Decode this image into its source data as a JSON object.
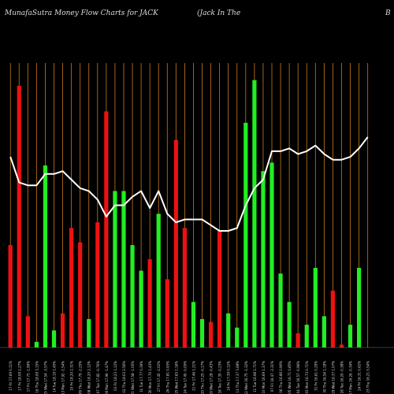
{
  "header": {
    "left": "MunafaSutra  Money Flow  Charts for JACK",
    "middle": "(Jack In  The",
    "right": "B"
  },
  "colors": {
    "background": "#000000",
    "up": "#22ee22",
    "down": "#ee1111",
    "line": "#ffffff",
    "grid": "#c87a1e",
    "text": "#dddddd"
  },
  "chart_data": {
    "type": "bar",
    "title": "MunafaSutra  Money Flow  Charts for JACK",
    "grid": "vertical",
    "ylim": [
      0,
      100
    ],
    "categories": [
      "17 Fri 17.69 0.11%",
      "17 Fri 18.09 2.27%",
      "17 Fri 17.73 -1.99%",
      "16 Thu 18.09 3.15%",
      "15 Wed 17.54 -3.57%",
      "14 Tue 18.19 1.45%",
      "13 Mon 17.92 -1.54%",
      "10 Fri 18.20 2.31%",
      "09 Thu 17.79 -2.25%",
      "08 Wed 18.20 2.12%",
      "07 Tue 17.82 -0.76%",
      "06 Mon 17.96 -1.47%",
      "03 Fri 18.23 1.12%",
      "02 Thu 18.03 2.56%",
      "01 Wed 17.58 -1.05%",
      "31 Tue 17.77 0.39%",
      "30 Mon 17.70 1.43%",
      "27 Fri 17.45 -2.02%",
      "26 Thu 17.81 0.93%",
      "25 Wed 17.65 1.16%",
      "24 Tue 17.45 -0.05%",
      "21 Fri 17.46 1.21%",
      "20 Thu 17.25 -0.17%",
      "19 Wed 17.28 -0.43%",
      "18 Tue 17.35 -0.23%",
      "14 Fri 17.39 0.12%",
      "13 Thu 17.37 3.68%",
      "12 Wed 16.75 -1.32%",
      "11 Tue 16.98 1.71%",
      "10 Mon 16.69 1.37%",
      "07 Fri 16.47 -2.31%",
      "06 Thu 16.86 0.90%",
      "05 Wed 16.71 0.85%",
      "04 Tue 16.57 -0.96%",
      "03 Mon 16.73 0.71%",
      "31 Fri 16.61 0.29%",
      "30 Thu 16.56 1.18%",
      "29 Wed 16.37 1.07%",
      "28 Tue 16.20 -0.38%",
      "27 Mon 16.26 -0.34%",
      "24 Fri 16.31 0.62%",
      "23 Thu 16.21 0.54%"
    ],
    "bar_height": [
      36,
      92,
      11,
      2,
      64,
      6,
      12,
      42,
      37,
      10,
      44,
      83,
      55,
      55,
      36,
      27,
      31,
      47,
      24,
      73,
      42,
      16,
      10,
      9,
      41,
      12,
      7,
      79,
      94,
      62,
      65,
      26,
      16,
      5,
      8,
      28,
      11,
      20,
      1,
      8,
      28,
      0
    ],
    "direction": [
      "down",
      "down",
      "down",
      "up",
      "up",
      "up",
      "down",
      "down",
      "down",
      "up",
      "down",
      "down",
      "up",
      "up",
      "up",
      "up",
      "down",
      "up",
      "down",
      "down",
      "down",
      "up",
      "up",
      "down",
      "down",
      "up",
      "up",
      "up",
      "up",
      "up",
      "up",
      "up",
      "up",
      "down",
      "up",
      "up",
      "up",
      "down",
      "down",
      "up",
      "up",
      "up"
    ],
    "line_values": [
      67,
      58,
      57,
      57,
      61,
      61,
      62,
      59,
      56,
      55,
      52,
      46,
      50,
      50,
      53,
      55,
      49,
      55,
      47,
      44,
      45,
      45,
      45,
      43,
      41,
      41,
      42,
      50,
      56,
      59,
      69,
      69,
      70,
      68,
      69,
      71,
      68,
      66,
      66,
      67,
      70,
      74
    ]
  }
}
